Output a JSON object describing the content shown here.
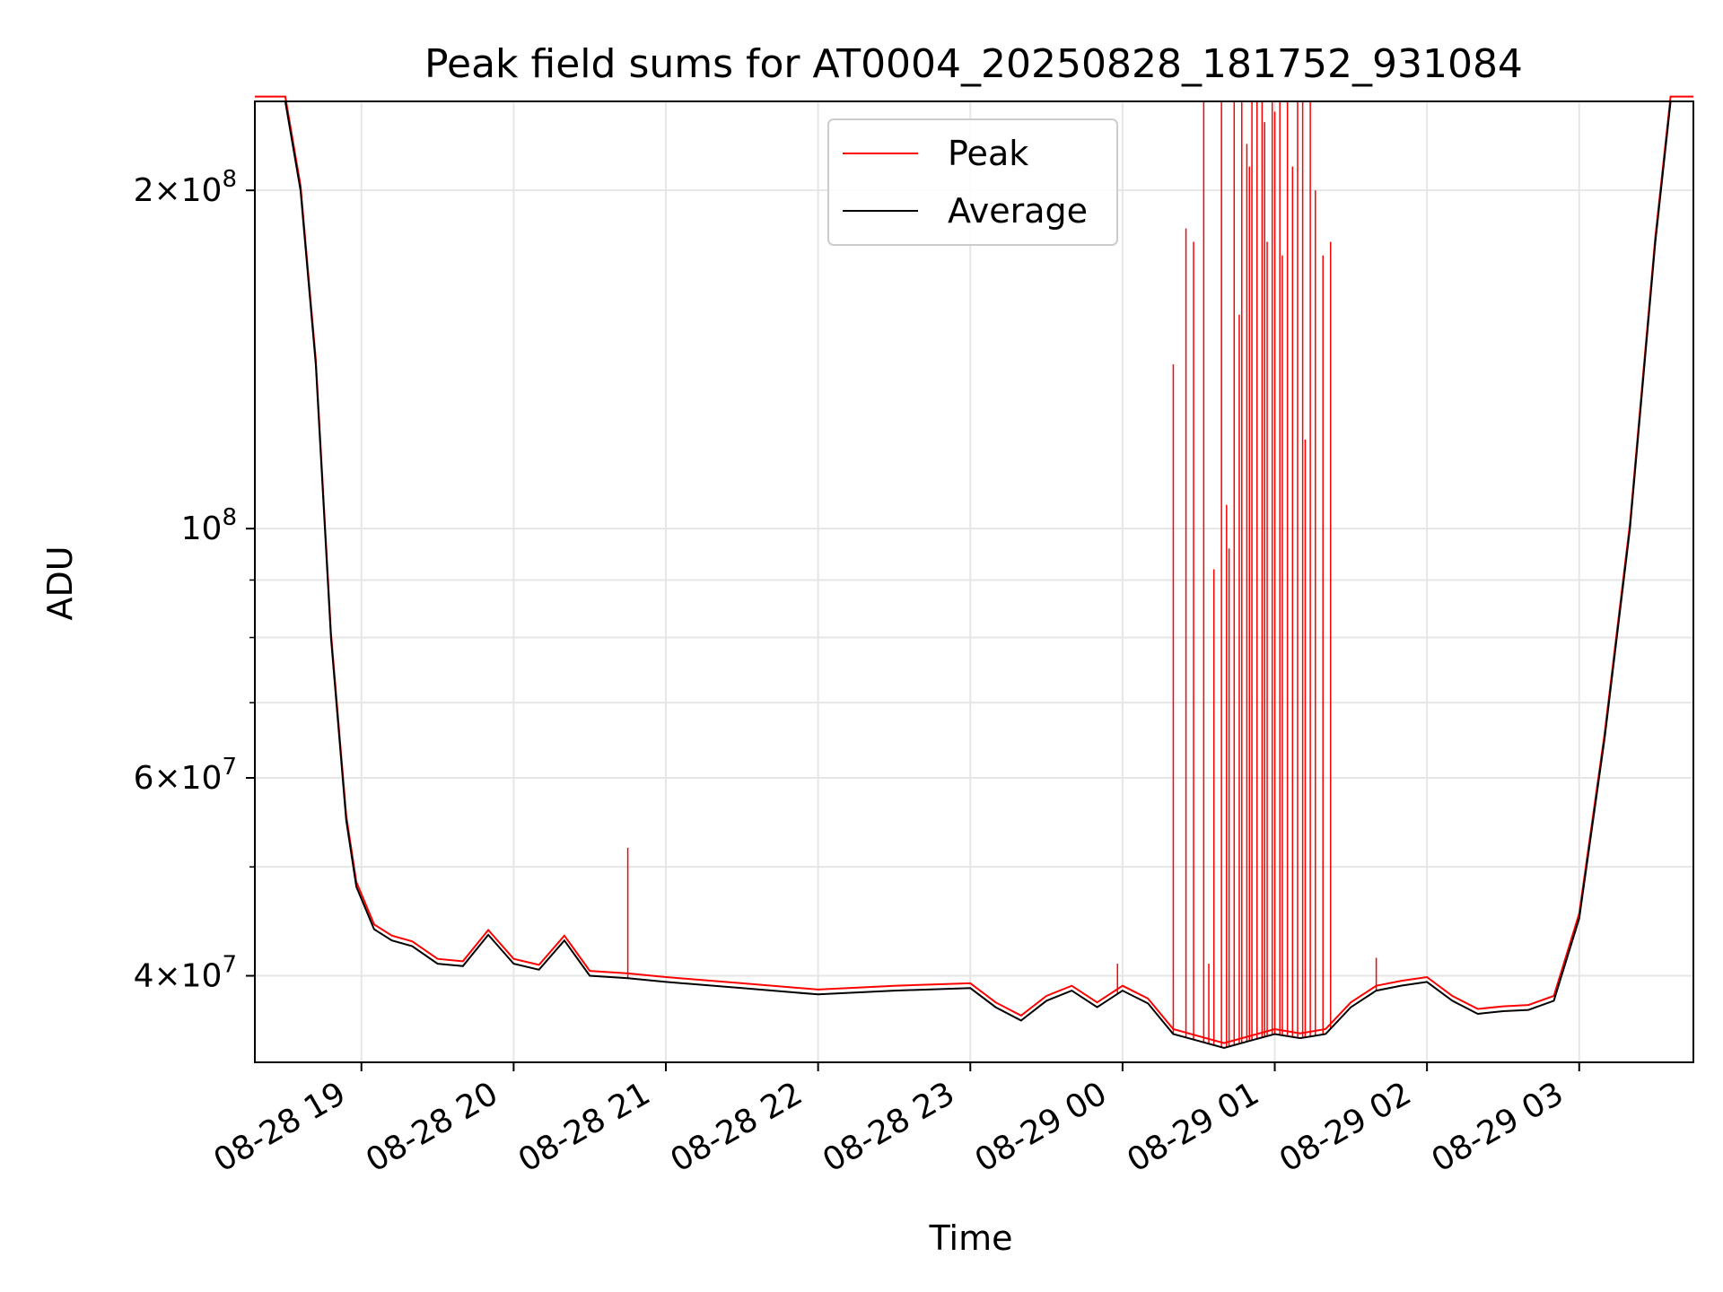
{
  "chart_data": {
    "type": "line",
    "title": "Peak field sums for AT0004_20250828_181752_931084",
    "xlabel": "Time",
    "ylabel": "ADU",
    "y_scale": "log",
    "ylim": [
      33500000,
      240000000
    ],
    "xlim": [
      "2025-08-28 18:18",
      "2025-08-29 03:45"
    ],
    "grid": true,
    "legend_position": "top-center",
    "x_tick_labels": [
      "08-28 19",
      "08-28 20",
      "08-28 21",
      "08-28 22",
      "08-28 23",
      "08-29 00",
      "08-29 01",
      "08-29 02",
      "08-29 03"
    ],
    "x_ticks": [
      "2025-08-28 19:00",
      "2025-08-28 20:00",
      "2025-08-28 21:00",
      "2025-08-28 22:00",
      "2025-08-28 23:00",
      "2025-08-29 00:00",
      "2025-08-29 01:00",
      "2025-08-29 02:00",
      "2025-08-29 03:00"
    ],
    "y_ticks": [
      {
        "value": 40000000,
        "mant": "4",
        "exp": "7"
      },
      {
        "value": 60000000,
        "mant": "6",
        "exp": "7"
      },
      {
        "value": 100000000,
        "mant": "",
        "exp": "8"
      },
      {
        "value": 200000000,
        "mant": "2",
        "exp": "8"
      }
    ],
    "y_minor_ticks": [
      50000000,
      70000000,
      80000000,
      90000000
    ],
    "series": [
      {
        "name": "Average",
        "color": "#000000",
        "x": [
          "2025-08-28 18:18",
          "2025-08-28 18:30",
          "2025-08-28 18:36",
          "2025-08-28 18:42",
          "2025-08-28 18:48",
          "2025-08-28 18:54",
          "2025-08-28 18:58",
          "2025-08-28 19:05",
          "2025-08-28 19:12",
          "2025-08-28 19:20",
          "2025-08-28 19:30",
          "2025-08-28 19:40",
          "2025-08-28 19:50",
          "2025-08-28 20:00",
          "2025-08-28 20:10",
          "2025-08-28 20:20",
          "2025-08-28 20:30",
          "2025-08-28 20:45",
          "2025-08-28 21:00",
          "2025-08-28 21:30",
          "2025-08-28 22:00",
          "2025-08-28 22:30",
          "2025-08-28 23:00",
          "2025-08-28 23:10",
          "2025-08-28 23:20",
          "2025-08-28 23:30",
          "2025-08-28 23:40",
          "2025-08-28 23:50",
          "2025-08-29 00:00",
          "2025-08-29 00:10",
          "2025-08-29 00:20",
          "2025-08-29 00:30",
          "2025-08-29 00:40",
          "2025-08-29 00:50",
          "2025-08-29 01:00",
          "2025-08-29 01:10",
          "2025-08-29 01:20",
          "2025-08-29 01:30",
          "2025-08-29 01:40",
          "2025-08-29 01:50",
          "2025-08-29 02:00",
          "2025-08-29 02:10",
          "2025-08-29 02:20",
          "2025-08-29 02:30",
          "2025-08-29 02:40",
          "2025-08-29 02:50",
          "2025-08-29 03:00",
          "2025-08-29 03:10",
          "2025-08-29 03:20",
          "2025-08-29 03:30",
          "2025-08-29 03:36",
          "2025-08-29 03:45"
        ],
        "y": [
          240000000,
          240000000,
          200000000,
          140000000,
          80000000,
          55000000,
          48000000,
          44000000,
          43000000,
          42500000,
          41000000,
          40800000,
          43500000,
          41000000,
          40500000,
          43000000,
          40000000,
          39800000,
          39500000,
          39000000,
          38500000,
          38800000,
          39000000,
          37500000,
          36500000,
          38000000,
          38800000,
          37500000,
          38800000,
          37800000,
          35500000,
          35000000,
          34500000,
          35000000,
          35500000,
          35200000,
          35500000,
          37500000,
          38800000,
          39200000,
          39500000,
          38000000,
          37000000,
          37200000,
          37300000,
          38000000,
          45000000,
          65000000,
          100000000,
          180000000,
          240000000,
          240000000
        ]
      },
      {
        "name": "Peak",
        "color": "#ff0000",
        "spikes": [
          {
            "x": "2025-08-28 20:45",
            "y": 52000000
          },
          {
            "x": "2025-08-28 23:58",
            "y": 41000000
          },
          {
            "x": "2025-08-29 00:20",
            "y": 140000000
          },
          {
            "x": "2025-08-29 00:25",
            "y": 185000000
          },
          {
            "x": "2025-08-29 00:28",
            "y": 180000000
          },
          {
            "x": "2025-08-29 00:32",
            "y": 240000000
          },
          {
            "x": "2025-08-29 00:34",
            "y": 41000000
          },
          {
            "x": "2025-08-29 00:36",
            "y": 92000000
          },
          {
            "x": "2025-08-29 00:39",
            "y": 240000000
          },
          {
            "x": "2025-08-29 00:41",
            "y": 105000000
          },
          {
            "x": "2025-08-29 00:42",
            "y": 96000000
          },
          {
            "x": "2025-08-29 00:44",
            "y": 240000000
          },
          {
            "x": "2025-08-29 00:46",
            "y": 155000000
          },
          {
            "x": "2025-08-29 00:47",
            "y": 240000000
          },
          {
            "x": "2025-08-29 00:49",
            "y": 220000000
          },
          {
            "x": "2025-08-29 00:50",
            "y": 210000000
          },
          {
            "x": "2025-08-29 00:51",
            "y": 240000000
          },
          {
            "x": "2025-08-29 00:53",
            "y": 240000000
          },
          {
            "x": "2025-08-29 00:55",
            "y": 240000000
          },
          {
            "x": "2025-08-29 00:56",
            "y": 230000000
          },
          {
            "x": "2025-08-29 00:57",
            "y": 180000000
          },
          {
            "x": "2025-08-29 00:59",
            "y": 240000000
          },
          {
            "x": "2025-08-29 01:00",
            "y": 235000000
          },
          {
            "x": "2025-08-29 01:02",
            "y": 240000000
          },
          {
            "x": "2025-08-29 01:03",
            "y": 175000000
          },
          {
            "x": "2025-08-29 01:05",
            "y": 240000000
          },
          {
            "x": "2025-08-29 01:07",
            "y": 210000000
          },
          {
            "x": "2025-08-29 01:09",
            "y": 240000000
          },
          {
            "x": "2025-08-29 01:11",
            "y": 240000000
          },
          {
            "x": "2025-08-29 01:12",
            "y": 120000000
          },
          {
            "x": "2025-08-29 01:14",
            "y": 240000000
          },
          {
            "x": "2025-08-29 01:16",
            "y": 200000000
          },
          {
            "x": "2025-08-29 01:19",
            "y": 175000000
          },
          {
            "x": "2025-08-29 01:22",
            "y": 180000000
          },
          {
            "x": "2025-08-29 01:40",
            "y": 41500000
          }
        ]
      }
    ]
  }
}
